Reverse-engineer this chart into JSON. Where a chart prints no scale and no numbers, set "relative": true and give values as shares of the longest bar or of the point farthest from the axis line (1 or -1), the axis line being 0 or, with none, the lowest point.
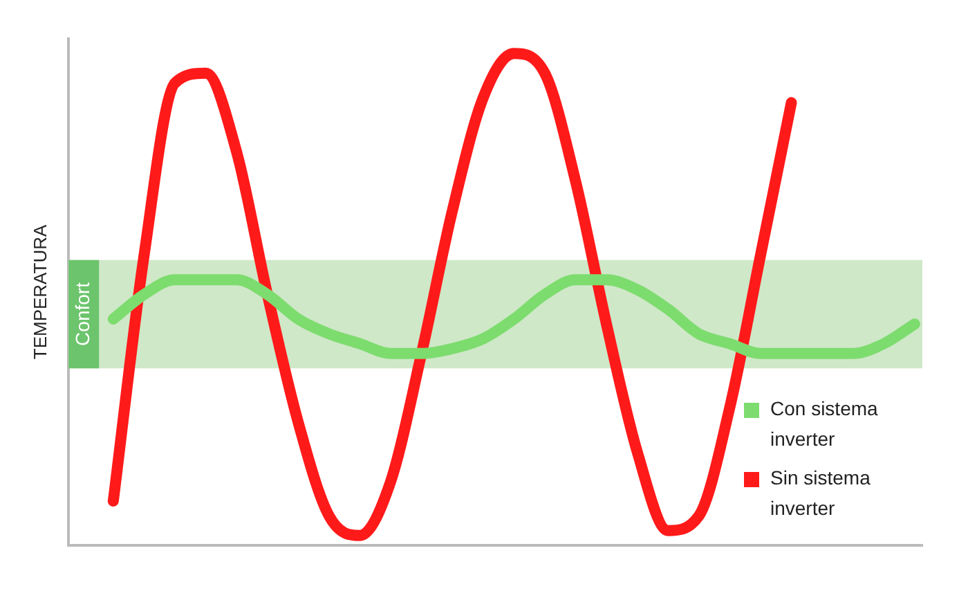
{
  "chart_data": {
    "type": "line",
    "relative": true,
    "ylabel": "TEMPERATURA",
    "legend": "bottom right",
    "grid": false,
    "marker": "none",
    "line_style": "solid",
    "categories": [
      null,
      null,
      null,
      null,
      null,
      null,
      null,
      null,
      null,
      null,
      null,
      null,
      null,
      null,
      null,
      null,
      null,
      null,
      null,
      null,
      null,
      null,
      null,
      null,
      null,
      null,
      null
    ],
    "series": [
      {
        "name": "Con sistema inverter",
        "color": "#7ddc6e",
        "values": [
          0.46,
          0.51,
          0.54,
          0.54,
          0.54,
          0.51,
          0.46,
          0.43,
          0.41,
          0.39,
          0.39,
          0.4,
          0.42,
          0.46,
          0.51,
          0.54,
          0.54,
          0.52,
          0.48,
          0.43,
          0.41,
          0.39,
          0.39,
          0.39,
          0.39,
          0.41,
          0.45
        ]
      },
      {
        "name": "Sin sistema inverter",
        "color": "#ff1a1a",
        "values": [
          0.09,
          0.59,
          0.94,
          0.96,
          0.8,
          0.51,
          0.25,
          0.06,
          0.02,
          0.13,
          0.39,
          0.68,
          0.91,
          1,
          0.96,
          0.74,
          0.45,
          0.19,
          0.03,
          0.06,
          0.28,
          0.59,
          0.9,
          null,
          null,
          null,
          null
        ]
      }
    ],
    "bands": [
      {
        "axis": "y",
        "from": 0.36,
        "to": 0.58,
        "label": "Confort",
        "color": "#cfe8c8"
      }
    ]
  }
}
